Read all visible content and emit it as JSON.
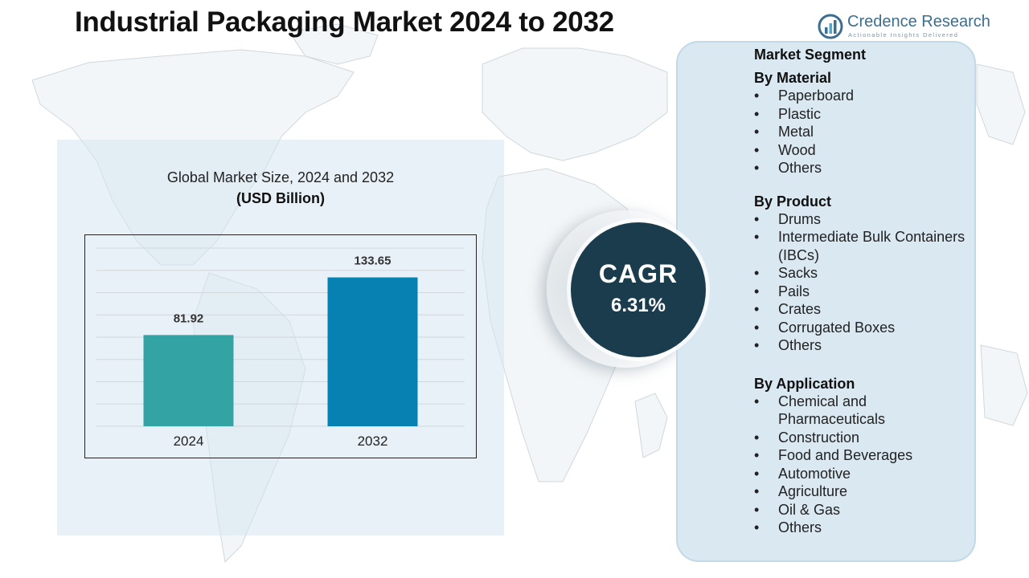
{
  "title": "Industrial Packaging Market  2024 to 2032",
  "logo": {
    "name": "Credence Research",
    "tagline": "Actionable Insights Delivered"
  },
  "chart_data": {
    "type": "bar",
    "title": "Global Market Size, 2024 and 2032",
    "subtitle": "(USD Billion)",
    "categories": [
      "2024",
      "2032"
    ],
    "values": [
      81.92,
      133.65
    ],
    "value_labels": [
      "81.92",
      "133.65"
    ],
    "colors": [
      "#34a3a3",
      "#0781b1"
    ],
    "ylim": [
      0,
      160
    ],
    "grid": true,
    "legend": "none"
  },
  "cagr": {
    "label": "CAGR",
    "value": "6.31%"
  },
  "segments": {
    "heading": "Market Segment",
    "groups": [
      {
        "title": "By Material",
        "items": [
          "Paperboard",
          "Plastic",
          "Metal",
          "Wood",
          "Others"
        ]
      },
      {
        "title": "By Product",
        "items": [
          "Drums",
          "Intermediate Bulk Containers (IBCs)",
          "Sacks",
          "Pails",
          "Crates",
          "Corrugated Boxes",
          "Others"
        ]
      },
      {
        "title": "By Application",
        "items": [
          "Chemical and Pharmaceuticals",
          "Construction",
          "Food and Beverages",
          "Automotive",
          "Agriculture",
          "Oil & Gas",
          "Others"
        ]
      }
    ]
  },
  "colors": {
    "panel_bg": "#d6e5f0",
    "cagr_circle": "#1b3c4c",
    "bar_2024": "#34a3a3",
    "bar_2032": "#0781b1"
  }
}
